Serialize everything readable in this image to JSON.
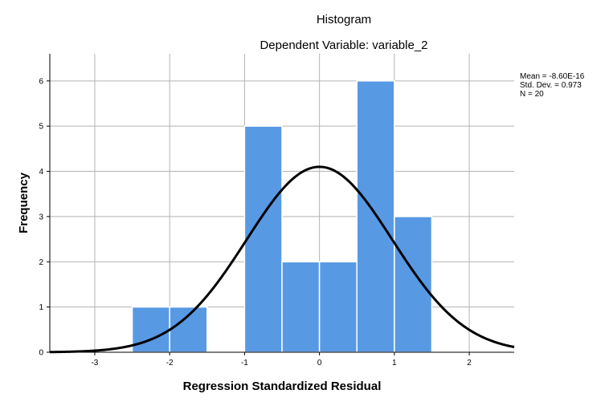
{
  "chart_data": {
    "type": "bar",
    "title": "Histogram",
    "subtitle": "Dependent Variable: variable_2",
    "xlabel": "Regression Standardized Residual",
    "ylabel": "Frequency",
    "bins": [
      {
        "start": -2.5,
        "end": -2.0,
        "count": 1
      },
      {
        "start": -2.0,
        "end": -1.5,
        "count": 1
      },
      {
        "start": -1.5,
        "end": -1.0,
        "count": 0
      },
      {
        "start": -1.0,
        "end": -0.5,
        "count": 5
      },
      {
        "start": -0.5,
        "end": 0.0,
        "count": 2
      },
      {
        "start": 0.0,
        "end": 0.5,
        "count": 2
      },
      {
        "start": 0.5,
        "end": 1.0,
        "count": 6
      },
      {
        "start": 1.0,
        "end": 1.5,
        "count": 3
      }
    ],
    "xlim": [
      -3.6,
      2.6
    ],
    "ylim": [
      0,
      6.6
    ],
    "x_ticks": [
      -3,
      -2,
      -1,
      0,
      1,
      2
    ],
    "y_ticks": [
      0,
      1,
      2,
      3,
      4,
      5,
      6
    ],
    "x_tick_labels": [
      "-3",
      "-2",
      "-1",
      "0",
      "1",
      "2"
    ],
    "y_tick_labels": [
      "0",
      "1",
      "2",
      "3",
      "4",
      "5",
      "6"
    ],
    "normal_curve": {
      "mean": 0,
      "std_dev": 0.973,
      "n": 20,
      "bin_width": 0.5
    },
    "grid": true,
    "stats": {
      "mean": "Mean = -8.60E-16",
      "std_dev": "Std. Dev. = 0.973",
      "n": "N = 20"
    },
    "bar_color": "#5899e4",
    "bar_edge_color": "#ffffff",
    "curve_color": "#000000",
    "grid_color": "#b3b3b3"
  }
}
